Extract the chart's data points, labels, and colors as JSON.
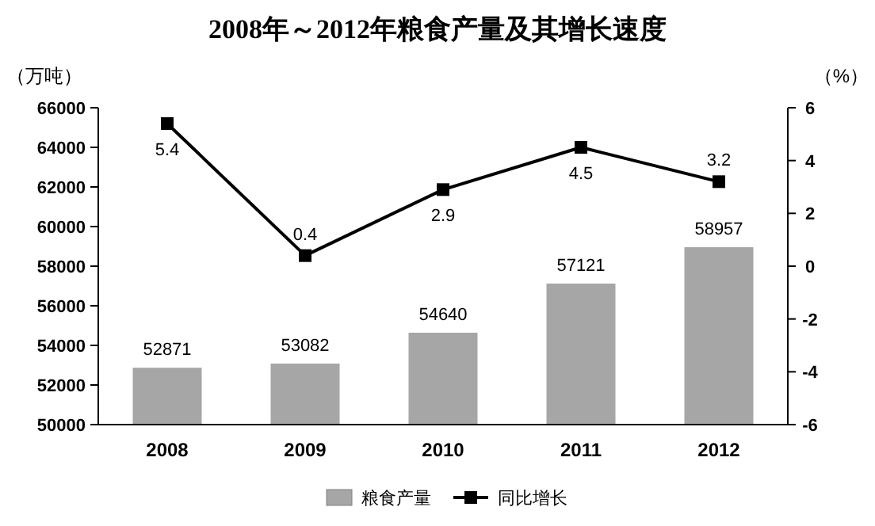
{
  "chart_data": {
    "type": "bar",
    "title": "2008年～2012年粮食产量及其增长速度",
    "ylabel": "（万吨）",
    "y2label": "（%）",
    "categories": [
      "2008",
      "2009",
      "2010",
      "2011",
      "2012"
    ],
    "series": [
      {
        "name": "粮食产量",
        "color": "#a6a6a6",
        "values": [
          52871,
          53082,
          54640,
          57121,
          58957
        ]
      },
      {
        "name": "同比增长",
        "type": "line",
        "axis": "y2",
        "color": "#000000",
        "values": [
          5.4,
          0.4,
          2.9,
          4.5,
          3.2
        ]
      }
    ],
    "ylim": [
      50000,
      66000
    ],
    "yticks": [
      50000,
      52000,
      54000,
      56000,
      58000,
      60000,
      62000,
      64000,
      66000
    ],
    "y2lim": [
      -6,
      6
    ],
    "y2ticks": [
      -6,
      -4,
      -2,
      0,
      2,
      4,
      6
    ],
    "data_labels": true,
    "legend": "bottom",
    "marker": "square",
    "grid": false
  }
}
